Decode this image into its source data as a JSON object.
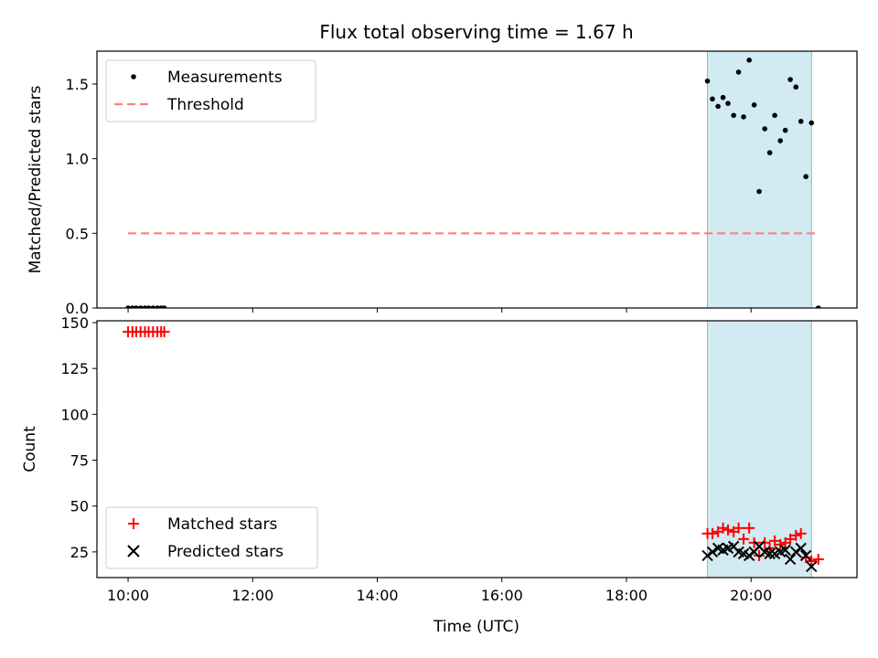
{
  "figure": {
    "title": "Flux total observing time = 1.67 h",
    "xlabel": "Time (UTC)",
    "x_tick_labels": [
      "10:00",
      "12:00",
      "14:00",
      "16:00",
      "18:00",
      "20:00"
    ],
    "colors": {
      "measurement": "#000000",
      "threshold": "#ff7f7f",
      "matched": "#ff0000",
      "predicted": "#000000",
      "shade": "#add8e6"
    }
  },
  "chart_data": [
    {
      "type": "scatter",
      "panel": "top",
      "ylabel": "Matched/Predicted stars",
      "x_unit": "hours UTC",
      "xlim": [
        9.5,
        21.7
      ],
      "ylim": [
        0,
        1.72
      ],
      "y_ticks": [
        0.0,
        0.5,
        1.0,
        1.5
      ],
      "y_tick_labels": [
        "0.0",
        "0.5",
        "1.0",
        "1.5"
      ],
      "legend": {
        "placement": "top-left",
        "entries": [
          "Measurements",
          "Threshold"
        ]
      },
      "shaded_x_range": [
        19.3,
        20.97
      ],
      "series": [
        {
          "name": "Measurements",
          "marker": "dot",
          "x": [
            10.0,
            10.07,
            10.13,
            10.2,
            10.27,
            10.33,
            10.4,
            10.47,
            10.53,
            10.58,
            19.3,
            19.38,
            19.47,
            19.55,
            19.63,
            19.72,
            19.8,
            19.88,
            19.97,
            20.05,
            20.13,
            20.22,
            20.3,
            20.38,
            20.47,
            20.55,
            20.63,
            20.72,
            20.8,
            20.88,
            20.97,
            21.08
          ],
          "y": [
            0,
            0,
            0,
            0,
            0,
            0,
            0,
            0,
            0,
            0,
            1.52,
            1.4,
            1.35,
            1.41,
            1.37,
            1.29,
            1.58,
            1.28,
            1.66,
            1.36,
            0.78,
            1.2,
            1.04,
            1.29,
            1.12,
            1.19,
            1.53,
            1.48,
            1.25,
            0.88,
            1.24,
            0
          ]
        },
        {
          "name": "Threshold",
          "style": "dashed",
          "x": [
            10.0,
            21.08
          ],
          "y": [
            0.5,
            0.5
          ]
        }
      ]
    },
    {
      "type": "scatter",
      "panel": "bottom",
      "ylabel": "Count",
      "x_unit": "hours UTC",
      "xlim": [
        9.5,
        21.7
      ],
      "ylim": [
        11,
        151
      ],
      "y_ticks": [
        25,
        50,
        75,
        100,
        125,
        150
      ],
      "y_tick_labels": [
        "25",
        "50",
        "75",
        "100",
        "125",
        "150"
      ],
      "legend": {
        "placement": "bottom-left",
        "entries": [
          "Matched stars",
          "Predicted stars"
        ]
      },
      "shaded_x_range": [
        19.3,
        20.97
      ],
      "series": [
        {
          "name": "Matched stars",
          "marker": "plus",
          "x": [
            10.0,
            10.07,
            10.13,
            10.2,
            10.27,
            10.33,
            10.4,
            10.47,
            10.53,
            10.58,
            19.3,
            19.38,
            19.47,
            19.55,
            19.63,
            19.72,
            19.8,
            19.88,
            19.97,
            20.05,
            20.13,
            20.22,
            20.3,
            20.38,
            20.47,
            20.55,
            20.63,
            20.72,
            20.8,
            20.88,
            20.97,
            21.08
          ],
          "y": [
            145,
            145,
            145,
            145,
            145,
            145,
            145,
            145,
            145,
            145,
            35,
            35,
            36,
            38,
            37,
            36,
            38,
            32,
            38,
            30,
            23,
            30,
            27,
            31,
            29,
            30,
            32,
            34,
            35,
            22,
            20,
            21
          ]
        },
        {
          "name": "Predicted stars",
          "marker": "x",
          "x": [
            19.3,
            19.38,
            19.47,
            19.55,
            19.63,
            19.72,
            19.8,
            19.88,
            19.97,
            20.05,
            20.13,
            20.22,
            20.3,
            20.38,
            20.47,
            20.55,
            20.63,
            20.72,
            20.8,
            20.88,
            20.97
          ],
          "y": [
            23,
            25,
            27,
            26,
            27,
            28,
            25,
            24,
            23,
            25,
            28,
            25,
            24,
            24,
            25,
            26,
            21,
            25,
            27,
            23,
            17
          ]
        }
      ]
    }
  ]
}
